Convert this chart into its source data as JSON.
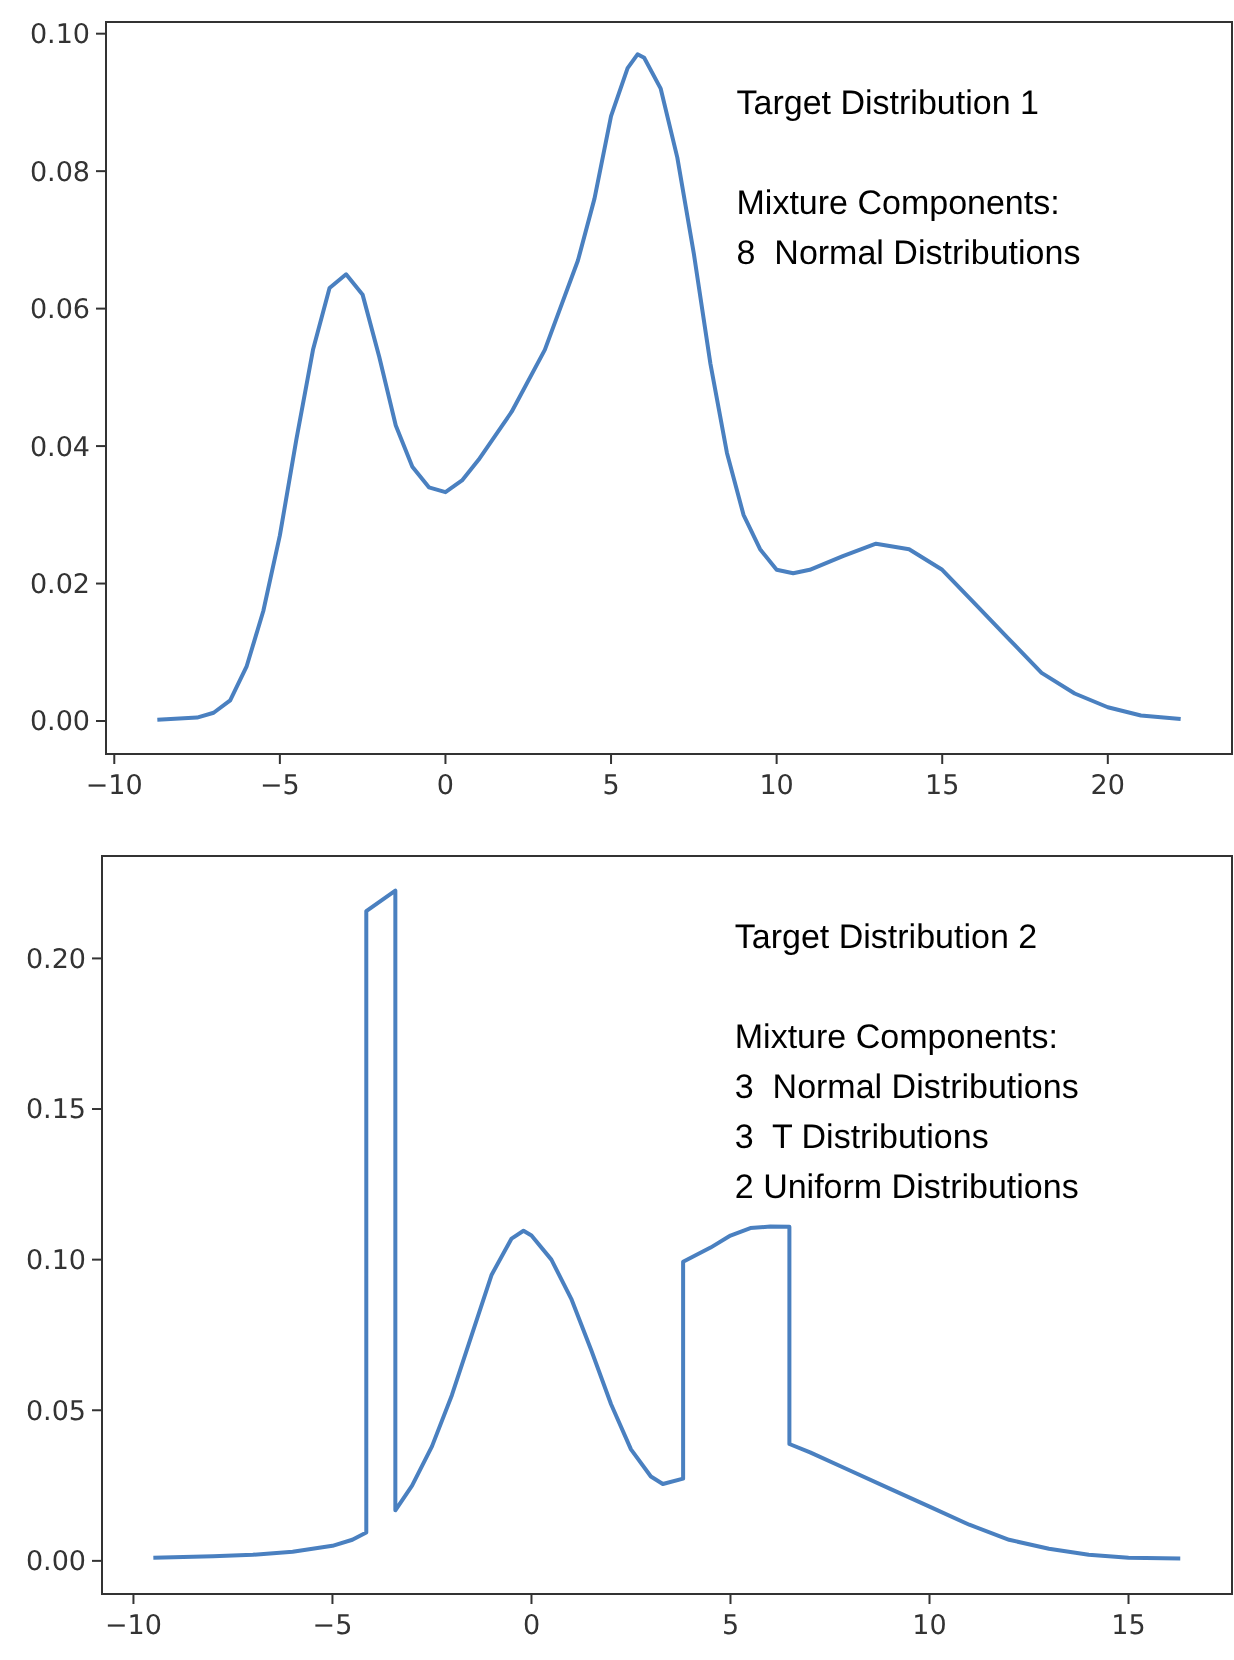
{
  "chart_data": [
    {
      "type": "line",
      "annotations": [
        "Target Distribution 1",
        "Mixture Components:\n8  Normal Distributions"
      ],
      "xlim": [
        -10.25,
        23.75
      ],
      "ylim": [
        -0.0048,
        0.1017
      ],
      "xticks": [
        -10,
        -5,
        0,
        5,
        10,
        15,
        20
      ],
      "yticks": [
        {
          "value": 0,
          "label": "0.00"
        },
        {
          "value": 0.02,
          "label": "0.02"
        },
        {
          "value": 0.04,
          "label": "0.04"
        },
        {
          "value": 0.06,
          "label": "0.06"
        },
        {
          "value": 0.08,
          "label": "0.08"
        },
        {
          "value": 0.1,
          "label": "0.10"
        }
      ],
      "series": [
        {
          "color": "#4a80c0",
          "x": [
            -8.7,
            -7.5,
            -7,
            -6.5,
            -6,
            -5.5,
            -5,
            -4.5,
            -4,
            -3.5,
            -3,
            -2.5,
            -2,
            -1.5,
            -1,
            -0.5,
            0,
            0.5,
            1,
            2,
            3,
            4,
            4.5,
            5,
            5.5,
            5.8,
            6,
            6.5,
            7,
            7.5,
            8,
            8.5,
            9,
            9.5,
            10,
            10.5,
            11,
            12,
            13,
            14,
            15,
            16,
            17,
            18,
            19,
            20,
            21,
            22.2
          ],
          "values": [
            0.0002,
            0.0005,
            0.0012,
            0.003,
            0.008,
            0.016,
            0.027,
            0.041,
            0.054,
            0.063,
            0.065,
            0.062,
            0.053,
            0.043,
            0.037,
            0.034,
            0.0333,
            0.035,
            0.038,
            0.045,
            0.054,
            0.067,
            0.076,
            0.088,
            0.095,
            0.097,
            0.0965,
            0.092,
            0.082,
            0.068,
            0.052,
            0.039,
            0.03,
            0.025,
            0.022,
            0.0215,
            0.022,
            0.024,
            0.0258,
            0.025,
            0.022,
            0.017,
            0.012,
            0.007,
            0.004,
            0.002,
            0.0008,
            0.0003
          ]
        }
      ]
    },
    {
      "type": "line",
      "annotations": [
        "Target Distribution 2",
        "Mixture Components:\n3  Normal Distributions\n3  T Distributions\n2 Uniform Distributions"
      ],
      "xlim": [
        -10.79,
        17.6
      ],
      "ylim": [
        -0.011,
        0.234
      ],
      "xticks": [
        -10,
        -5,
        0,
        5,
        10,
        15
      ],
      "yticks": [
        {
          "value": 0,
          "label": "0.00"
        },
        {
          "value": 0.05,
          "label": "0.05"
        },
        {
          "value": 0.1,
          "label": "0.10"
        },
        {
          "value": 0.15,
          "label": "0.15"
        },
        {
          "value": 0.2,
          "label": "0.20"
        }
      ],
      "series": [
        {
          "color": "#4a80c0",
          "x": [
            -9.5,
            -8,
            -7,
            -6,
            -5,
            -4.5,
            -4.15,
            -4.15,
            -3.42,
            -3.42,
            -3,
            -2.5,
            -2,
            -1.5,
            -1,
            -0.5,
            -0.2,
            0,
            0.5,
            1,
            1.5,
            2,
            2.5,
            3,
            3.3,
            3.81,
            3.81,
            4.5,
            5,
            5.5,
            6,
            6.48,
            6.48,
            7,
            8,
            9,
            10,
            11,
            12,
            13,
            14,
            15,
            16.3
          ],
          "values": [
            0.001,
            0.0015,
            0.002,
            0.003,
            0.005,
            0.007,
            0.0094,
            0.2157,
            0.2225,
            0.0168,
            0.025,
            0.038,
            0.055,
            0.075,
            0.095,
            0.107,
            0.1096,
            0.108,
            0.1,
            0.087,
            0.07,
            0.052,
            0.037,
            0.028,
            0.0255,
            0.0273,
            0.0993,
            0.104,
            0.108,
            0.1105,
            0.111,
            0.1109,
            0.0388,
            0.036,
            0.03,
            0.024,
            0.018,
            0.012,
            0.007,
            0.004,
            0.002,
            0.001,
            0.0008
          ]
        }
      ]
    }
  ]
}
